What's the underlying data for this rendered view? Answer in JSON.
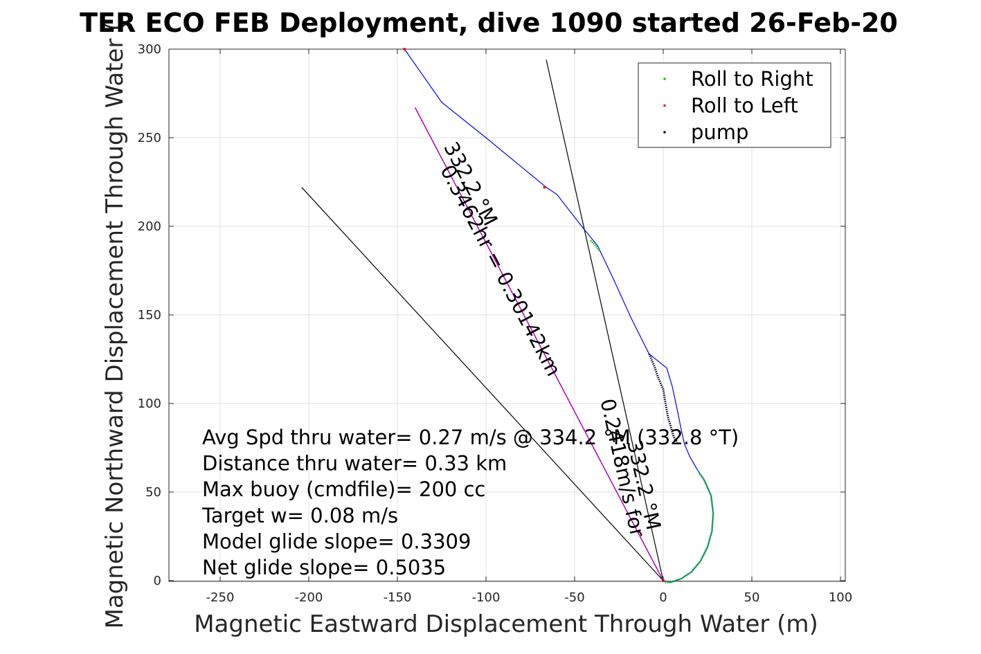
{
  "chart_data": {
    "type": "scatter",
    "title": "TER ECO FEB Deployment, dive 1090 started 26-Feb-20",
    "xlabel": "Magnetic Eastward Displacement Through Water (m)",
    "ylabel": "Magnetic Northward Displacement Through Water (",
    "xlim": [
      -280,
      103
    ],
    "ylim": [
      -2,
      300
    ],
    "xticks": [
      -250,
      -200,
      -150,
      -100,
      -50,
      0,
      50,
      100
    ],
    "yticks": [
      0,
      50,
      100,
      150,
      200,
      250,
      300
    ],
    "xtick_labels": [
      "-250",
      "-200",
      "-150",
      "-100",
      "-50",
      "0",
      "50",
      "100"
    ],
    "ytick_labels": [
      "0",
      "50",
      "100",
      "150",
      "200",
      "250",
      "300"
    ],
    "grid": true,
    "legend_position": "top-right",
    "legend": [
      {
        "label": "Roll to Right",
        "color": "#00cc00"
      },
      {
        "label": "Roll to Left",
        "color": "#ff0000"
      },
      {
        "label": "pump",
        "color": "#000000"
      }
    ],
    "track": {
      "color": "#0000ff",
      "points": [
        [
          0,
          0
        ],
        [
          4,
          -1
        ],
        [
          10,
          1
        ],
        [
          16,
          5
        ],
        [
          21,
          11
        ],
        [
          25,
          19
        ],
        [
          27.5,
          28
        ],
        [
          28.2,
          38
        ],
        [
          27,
          48
        ],
        [
          23,
          57
        ],
        [
          19,
          63
        ],
        [
          15,
          70
        ],
        [
          12,
          77
        ],
        [
          10,
          86
        ],
        [
          8,
          96
        ],
        [
          5,
          110
        ],
        [
          2,
          120
        ],
        [
          -8,
          128
        ],
        [
          -18,
          148
        ],
        [
          -28,
          170
        ],
        [
          -37,
          189
        ],
        [
          -46,
          200
        ],
        [
          -60,
          218
        ],
        [
          -66,
          222
        ],
        [
          -100,
          250
        ],
        [
          -125,
          270
        ],
        [
          -146,
          300
        ]
      ]
    },
    "roll_right_segments": [
      [
        [
          1,
          -1
        ],
        [
          4,
          -1
        ],
        [
          10,
          1
        ],
        [
          16,
          5
        ],
        [
          21,
          11
        ],
        [
          25,
          19
        ],
        [
          27.5,
          28
        ],
        [
          28.2,
          38
        ],
        [
          27,
          48
        ],
        [
          23,
          57
        ],
        [
          20,
          61
        ]
      ],
      [
        [
          -41,
          192
        ],
        [
          -38,
          189
        ],
        [
          -36,
          186
        ]
      ]
    ],
    "roll_left_points": [
      [
        -146,
        300
      ],
      [
        -67,
        222
      ]
    ],
    "pump_segment": [
      [
        -8,
        128
      ],
      [
        -5,
        121
      ],
      [
        -3,
        115
      ],
      [
        0,
        108
      ],
      [
        1,
        102
      ],
      [
        2,
        96
      ],
      [
        3,
        91
      ],
      [
        4,
        88
      ],
      [
        5,
        84
      ],
      [
        6,
        81
      ],
      [
        8,
        78
      ]
    ],
    "heading_line": {
      "color": "#cc00cc",
      "from": [
        0,
        0
      ],
      "to": [
        -140,
        267
      ],
      "label": "0.3462hr = 0.30142km",
      "label_prefix": "0.2418m/s for ",
      "heading": "332.2 °M"
    },
    "black_lines": [
      {
        "from": [
          0,
          0
        ],
        "to": [
          -204,
          222
        ]
      },
      {
        "from": [
          0,
          0
        ],
        "to": [
          -66,
          294
        ]
      }
    ],
    "black_label": {
      "speed": "0.2418m/s",
      "heading": "332.2 °M"
    },
    "annotations": [
      "Avg Spd thru water=  0.27 m/s @ 334.2 °M (332.8 °T)",
      "Distance thru water=  0.33 km",
      "Max buoy (cmdfile)= 200 cc",
      "Target w= 0.08 m/s",
      "Model glide slope= 0.3309",
      "Net glide slope= 0.5035"
    ]
  }
}
